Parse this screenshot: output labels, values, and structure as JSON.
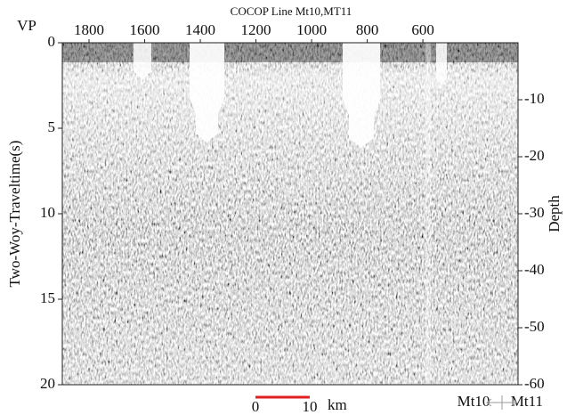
{
  "chart_data": {
    "type": "seismic-section",
    "title": "COCOP Line Mt10,MT11",
    "x_label": "VP",
    "y_label": "Two-Woy-Traveltime(s)",
    "y2_label": "Depth",
    "xlim": [
      1896,
      258
    ],
    "xticks": [
      1800,
      1600,
      1400,
      1200,
      1000,
      800,
      600
    ],
    "ylim": [
      0,
      20
    ],
    "yticks": [
      0,
      5,
      10,
      15,
      20
    ],
    "y2lim": [
      0,
      -60
    ],
    "y2ticks": [
      -10,
      -20,
      -30,
      -40,
      -50,
      -60
    ],
    "scale_bar": {
      "start": 0,
      "end": 10,
      "unit": "km",
      "color": "#e02020"
    },
    "profile_left": "Mt10",
    "profile_right": "Mt11"
  }
}
